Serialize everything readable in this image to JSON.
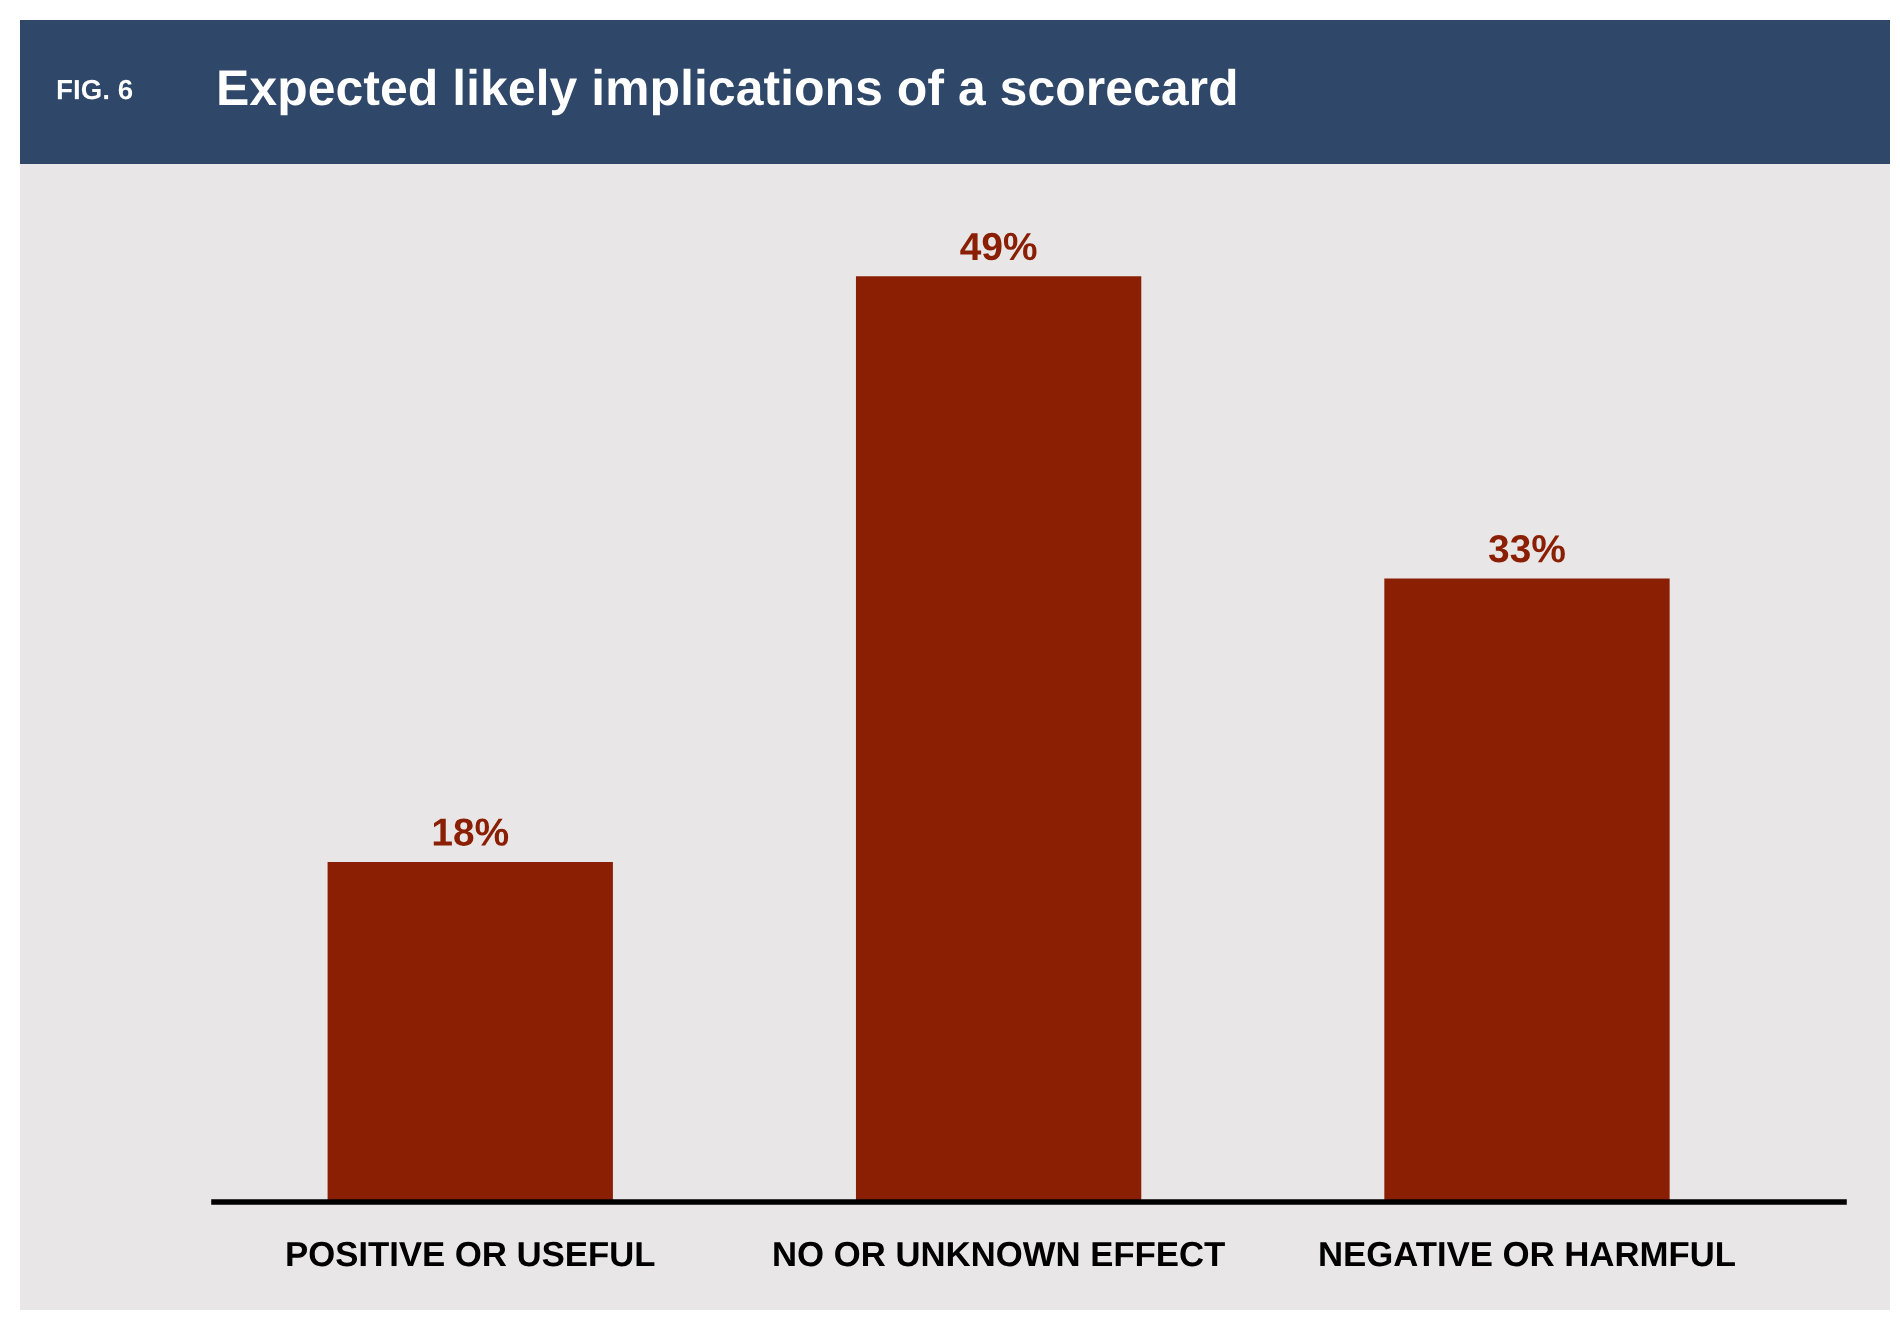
{
  "chart_data": {
    "type": "bar",
    "title": "Expected likely implications of a scorecard",
    "annotations": [
      "FIG. 6"
    ],
    "categories": [
      "POSITIVE OR USEFUL",
      "NO OR UNKNOWN EFFECT",
      "NEGATIVE OR HARMFUL"
    ],
    "values": [
      18,
      49,
      33
    ],
    "color": "#8a1f03",
    "value_labels": [
      "18%",
      "49%",
      "33%"
    ]
  }
}
